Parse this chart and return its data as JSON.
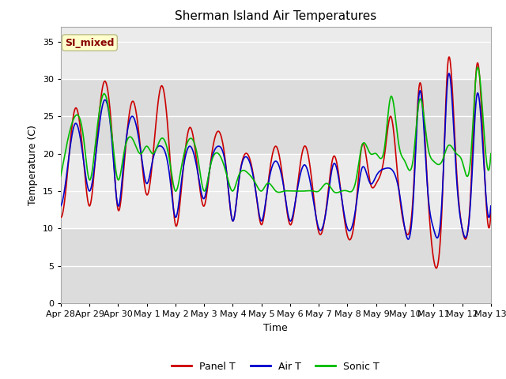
{
  "title": "Sherman Island Air Temperatures",
  "xlabel": "Time",
  "ylabel": "Temperature (C)",
  "ylim": [
    0,
    37
  ],
  "yticks": [
    0,
    5,
    10,
    15,
    20,
    25,
    30,
    35
  ],
  "xlabels": [
    "Apr 28",
    "Apr 29",
    "Apr 30",
    "May 1",
    "May 2",
    "May 3",
    "May 4",
    "May 5",
    "May 6",
    "May 7",
    "May 8",
    "May 9",
    "May 10",
    "May 11",
    "May 12",
    "May 13"
  ],
  "panel_color": "#cc0000",
  "air_color": "#0000cc",
  "sonic_color": "#00bb00",
  "fig_bg": "#ffffff",
  "plot_bg": "#ffffff",
  "band1_color": "#dcdcdc",
  "band2_color": "#ebebeb",
  "annotation_text": "SI_mixed",
  "annotation_color": "#880000",
  "annotation_bg": "#ffffcc",
  "annotation_edge": "#bbbb88",
  "line_width": 1.2,
  "title_fontsize": 11,
  "axis_label_fontsize": 9,
  "tick_fontsize": 8,
  "legend_fontsize": 9,
  "panel_T_x": [
    0,
    0.25,
    0.5,
    0.75,
    1.0,
    1.25,
    1.5,
    1.75,
    2.0,
    2.25,
    2.5,
    2.75,
    3.0,
    3.25,
    3.5,
    3.75,
    4.0,
    4.25,
    4.5,
    4.75,
    5.0,
    5.25,
    5.5,
    5.75,
    6.0,
    6.25,
    6.5,
    6.75,
    7.0,
    7.25,
    7.5,
    7.75,
    8.0,
    8.25,
    8.5,
    8.75,
    9.0,
    9.25,
    9.5,
    9.75,
    10.0,
    10.25,
    10.5,
    10.75,
    11.0,
    11.25,
    11.5,
    11.75,
    12.0,
    12.25,
    12.5,
    12.75,
    13.0,
    13.25,
    13.5,
    13.75,
    14.0,
    14.25,
    14.5,
    14.75,
    15.0
  ],
  "panel_T_y": [
    11.5,
    18,
    26,
    20,
    13,
    20,
    29.5,
    22,
    12.5,
    19,
    27,
    21,
    14.5,
    20.5,
    22,
    17,
    10.5,
    17,
    23.5,
    18,
    13,
    19,
    23,
    18,
    11,
    17,
    20,
    16,
    10.5,
    16,
    21,
    16,
    10.5,
    14,
    21,
    16,
    9.5,
    14,
    19.5,
    15,
    9,
    14,
    21,
    17,
    16,
    20,
    25,
    16,
    10,
    15,
    29,
    17,
    6,
    14,
    32,
    19,
    10,
    15,
    31.5,
    17,
    12
  ],
  "air_T_x": [
    0,
    0.25,
    0.5,
    0.75,
    1.0,
    1.25,
    1.5,
    1.75,
    2.0,
    2.25,
    2.5,
    2.75,
    3.0,
    3.25,
    3.5,
    3.75,
    4.0,
    4.25,
    4.5,
    4.75,
    5.0,
    5.25,
    5.5,
    5.75,
    6.0,
    6.25,
    6.5,
    6.75,
    7.0,
    7.25,
    7.5,
    7.75,
    8.0,
    8.25,
    8.5,
    8.75,
    9.0,
    9.25,
    9.5,
    9.75,
    10.0,
    10.25,
    10.5,
    10.75,
    11.0,
    11.25,
    11.5,
    11.75,
    12.0,
    12.25,
    12.5,
    12.75,
    13.0,
    13.25,
    13.5,
    13.75,
    14.0,
    14.25,
    14.5,
    14.75,
    15.0
  ],
  "air_T_y": [
    13,
    18,
    24,
    19,
    15,
    19.5,
    27,
    21,
    13,
    19,
    25,
    20,
    16,
    19.5,
    21,
    17,
    11.5,
    16.5,
    21,
    17,
    14,
    18,
    21,
    17,
    11,
    16.5,
    19.5,
    15.5,
    11,
    15.5,
    19,
    15.5,
    11,
    13.5,
    18.5,
    15,
    10,
    13.5,
    18.5,
    14.5,
    10,
    13,
    18,
    16,
    17,
    18,
    18,
    15,
    10,
    14,
    28,
    17,
    10,
    14,
    30,
    18,
    10,
    14,
    28,
    16,
    13
  ],
  "sonic_T_x": [
    0,
    0.25,
    0.5,
    0.75,
    1.0,
    1.25,
    1.5,
    1.75,
    2.0,
    2.25,
    2.5,
    2.75,
    3.0,
    3.25,
    3.5,
    3.75,
    4.0,
    4.25,
    4.5,
    4.75,
    5.0,
    5.25,
    5.5,
    5.75,
    6.0,
    6.25,
    6.5,
    6.75,
    7.0,
    7.25,
    7.5,
    7.75,
    8.0,
    8.25,
    8.5,
    8.75,
    9.0,
    9.25,
    9.5,
    9.75,
    10.0,
    10.25,
    10.5,
    10.75,
    11.0,
    11.25,
    11.5,
    11.75,
    12.0,
    12.25,
    12.5,
    12.75,
    13.0,
    13.25,
    13.5,
    13.75,
    14.0,
    14.25,
    14.5,
    14.75,
    15.0
  ],
  "sonic_T_y": [
    17,
    21,
    25,
    22,
    16.5,
    21,
    28,
    23,
    16.5,
    20,
    22,
    20,
    21,
    20,
    22,
    19,
    15,
    18,
    22,
    19,
    15,
    18,
    20,
    18,
    15,
    17.5,
    17.5,
    16,
    15,
    17,
    15,
    15,
    15,
    15,
    15,
    15,
    15,
    16,
    15,
    15,
    15,
    17,
    21,
    19,
    20,
    21.5,
    27.5,
    21,
    19,
    19.5,
    27,
    21,
    19,
    19,
    21,
    21,
    19,
    19,
    31,
    21,
    20
  ]
}
